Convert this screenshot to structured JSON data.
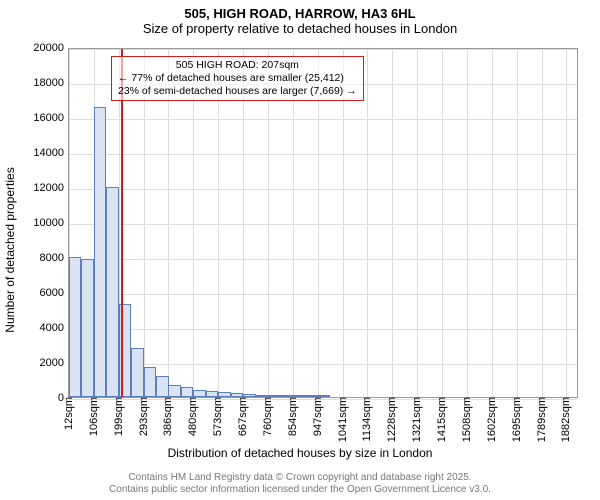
{
  "title": {
    "main": "505, HIGH ROAD, HARROW, HA3 6HL",
    "sub": "Size of property relative to detached houses in London"
  },
  "axes": {
    "ylabel": "Number of detached properties",
    "xlabel": "Distribution of detached houses by size in London",
    "ylim": [
      0,
      20000
    ],
    "ytick_step": 2000,
    "yticks": [
      0,
      2000,
      4000,
      6000,
      8000,
      10000,
      12000,
      14000,
      16000,
      18000,
      20000
    ],
    "xticks_sqm": [
      12,
      106,
      199,
      293,
      386,
      480,
      573,
      667,
      760,
      854,
      947,
      1041,
      1134,
      1228,
      1321,
      1415,
      1508,
      1602,
      1695,
      1789,
      1882
    ],
    "xlim_sqm": [
      12,
      1930
    ]
  },
  "chart": {
    "type": "histogram",
    "bar_fill": "#d9e3f3",
    "bar_stroke": "#5b7fbf",
    "bg": "#ffffff",
    "grid_color": "#dddddd",
    "bin_width_sqm": 47,
    "bins_start_sqm": [
      12,
      59,
      106,
      153,
      199,
      246,
      293,
      340,
      386,
      433,
      480,
      527,
      573,
      620,
      667,
      714,
      760,
      807,
      854,
      901,
      947
    ],
    "counts": [
      8000,
      7900,
      16600,
      12000,
      5300,
      2800,
      1700,
      1200,
      700,
      550,
      400,
      330,
      280,
      220,
      160,
      130,
      100,
      80,
      65,
      55,
      45
    ]
  },
  "marker": {
    "sqm": 207,
    "color": "#d01c1c",
    "label_title": "505 HIGH ROAD: 207sqm",
    "label_line1": "← 77% of detached houses are smaller (25,412)",
    "label_line2": "23% of semi-detached houses are larger (7,669) →",
    "box_border": "#d01c1c"
  },
  "footnote": {
    "line1": "Contains HM Land Registry data © Crown copyright and database right 2025.",
    "line2": "Contains public sector information licensed under the Open Government Licence v3.0."
  }
}
